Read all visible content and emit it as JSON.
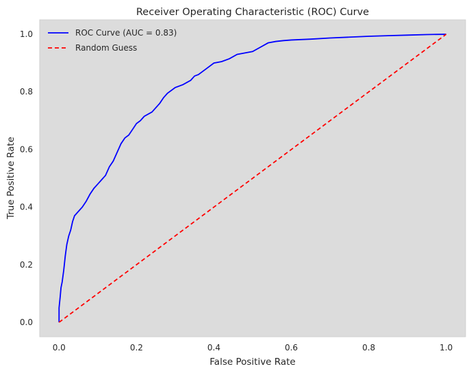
{
  "chart_data": {
    "type": "line",
    "title": "Receiver Operating Characteristic (ROC) Curve",
    "xlabel": "False Positive Rate",
    "ylabel": "True Positive Rate",
    "xlim": [
      -0.05,
      1.05
    ],
    "ylim": [
      -0.05,
      1.05
    ],
    "xticks": [
      "0.0",
      "0.2",
      "0.4",
      "0.6",
      "0.8",
      "1.0"
    ],
    "yticks": [
      "0.0",
      "0.2",
      "0.4",
      "0.6",
      "0.8",
      "1.0"
    ],
    "grid": false,
    "legend_position": "upper-left",
    "background_color": "#dcdcdc",
    "series": [
      {
        "name": "ROC Curve (AUC = 0.83)",
        "color": "#0000ff",
        "line_style": "solid",
        "x": [
          0.0,
          0.0,
          0.003,
          0.005,
          0.008,
          0.012,
          0.016,
          0.02,
          0.025,
          0.03,
          0.035,
          0.04,
          0.05,
          0.06,
          0.07,
          0.08,
          0.09,
          0.1,
          0.11,
          0.12,
          0.13,
          0.14,
          0.15,
          0.16,
          0.17,
          0.18,
          0.19,
          0.2,
          0.21,
          0.22,
          0.24,
          0.26,
          0.27,
          0.28,
          0.3,
          0.32,
          0.34,
          0.35,
          0.36,
          0.38,
          0.4,
          0.42,
          0.44,
          0.46,
          0.48,
          0.5,
          0.52,
          0.54,
          0.56,
          0.58,
          0.6,
          0.65,
          0.7,
          0.75,
          0.8,
          0.85,
          0.9,
          0.95,
          1.0
        ],
        "y": [
          0.0,
          0.05,
          0.09,
          0.12,
          0.14,
          0.18,
          0.23,
          0.27,
          0.3,
          0.32,
          0.35,
          0.37,
          0.385,
          0.4,
          0.42,
          0.445,
          0.465,
          0.48,
          0.495,
          0.51,
          0.54,
          0.56,
          0.59,
          0.62,
          0.64,
          0.65,
          0.67,
          0.69,
          0.7,
          0.715,
          0.73,
          0.76,
          0.78,
          0.795,
          0.815,
          0.825,
          0.84,
          0.855,
          0.86,
          0.88,
          0.9,
          0.905,
          0.915,
          0.93,
          0.935,
          0.94,
          0.955,
          0.97,
          0.975,
          0.978,
          0.98,
          0.983,
          0.987,
          0.99,
          0.993,
          0.995,
          0.997,
          0.999,
          1.0
        ]
      },
      {
        "name": "Random Guess",
        "color": "#ff0000",
        "line_style": "dashed",
        "x": [
          0.0,
          1.0
        ],
        "y": [
          0.0,
          1.0
        ]
      }
    ]
  }
}
